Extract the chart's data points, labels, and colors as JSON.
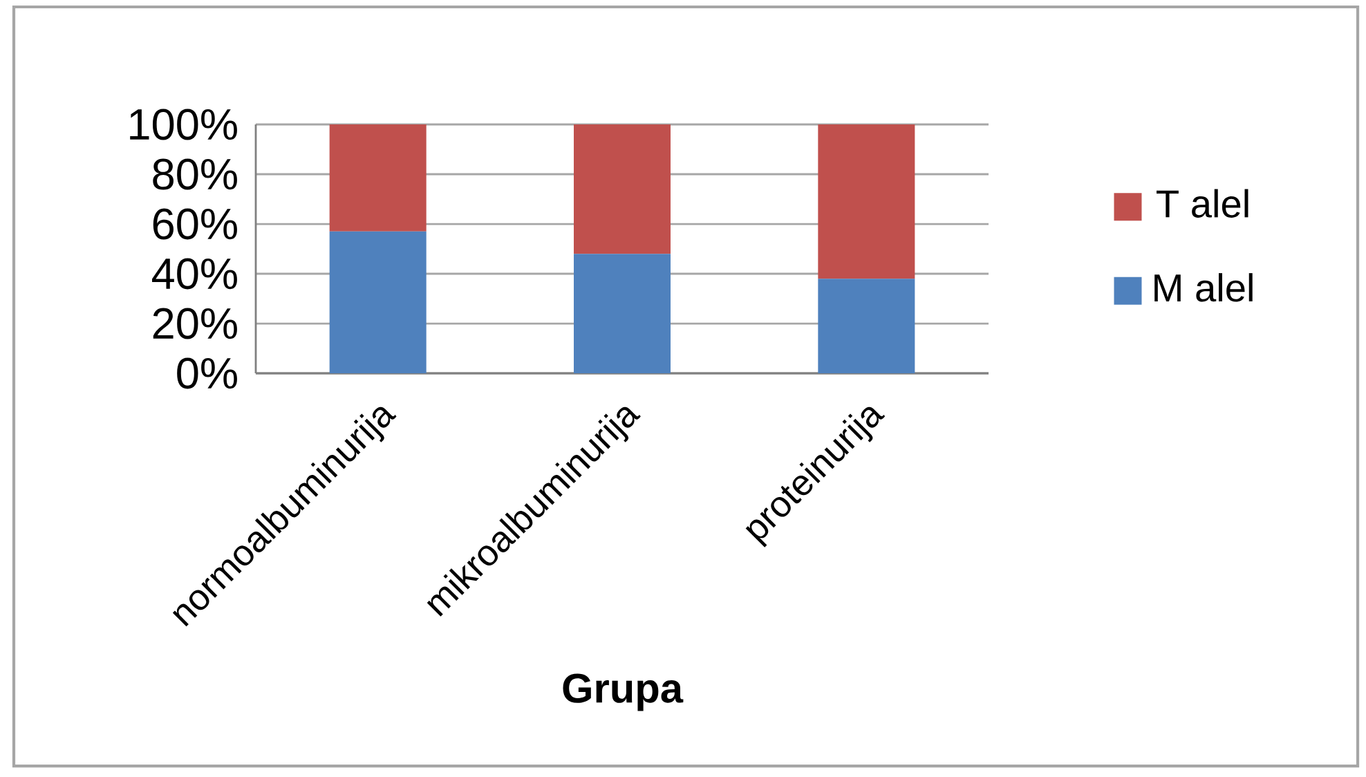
{
  "chart_data": {
    "type": "bar",
    "stacked": true,
    "categories": [
      "normoalbuminurija",
      "mikroalbuminurija",
      "proteinurija"
    ],
    "series": [
      {
        "name": "M alel",
        "color": "#4f81bd",
        "values": [
          57,
          48,
          38
        ]
      },
      {
        "name": "T alel",
        "color": "#c0504d",
        "values": [
          43,
          52,
          62
        ]
      }
    ],
    "ylim": [
      0,
      100
    ],
    "yticks": [
      {
        "value": 0,
        "label": "0%"
      },
      {
        "value": 20,
        "label": "20%"
      },
      {
        "value": 40,
        "label": "40%"
      },
      {
        "value": 60,
        "label": "60%"
      },
      {
        "value": 80,
        "label": "80%"
      },
      {
        "value": 100,
        "label": "100%"
      }
    ],
    "grid": "y",
    "legend": "right",
    "xlabel": "Grupa"
  }
}
